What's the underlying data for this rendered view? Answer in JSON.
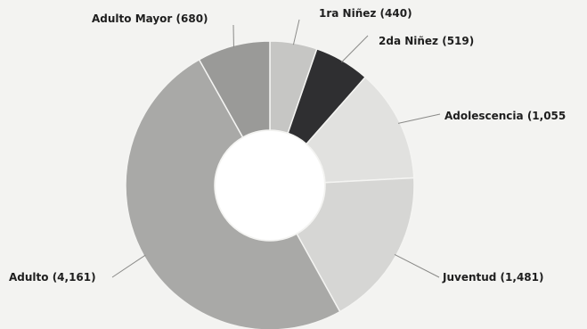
{
  "chart_data": {
    "type": "pie",
    "donut": true,
    "legend": "none",
    "slices": [
      {
        "name": "1ra Niñez",
        "value": 440,
        "label": "1ra Niñez (440)",
        "color": "#c6c6c4"
      },
      {
        "name": "2da Niñez",
        "value": 519,
        "label": "2da Niñez (519)",
        "color": "#2f2f31"
      },
      {
        "name": "Adolescencia",
        "value": 1055,
        "label": "Adolescencia (1,055",
        "color": "#e1e1df"
      },
      {
        "name": "Juventud",
        "value": 1481,
        "label": "Juventud (1,481)",
        "color": "#d6d6d4"
      },
      {
        "name": "Adulto",
        "value": 4161,
        "label": "Adulto (4,161)",
        "color": "#a9a9a7"
      },
      {
        "name": "Adulto Mayor",
        "value": 680,
        "label": "Adulto Mayor (680)",
        "color": "#9a9a98"
      }
    ]
  }
}
